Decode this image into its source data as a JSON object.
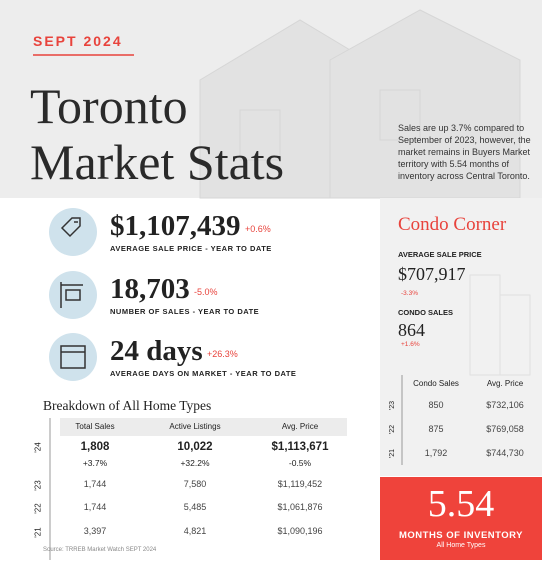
{
  "header": {
    "date": "SEPT 2024",
    "title_line1": "Toronto",
    "title_line2": "Market Stats",
    "summary": "Sales are up 3.7% compared to September of 2023, however, the market remains in Buyers Market territory with 5.54 months of inventory across Central Toronto."
  },
  "stats": [
    {
      "value": "$1,107,439",
      "change": "+0.6%",
      "label": "AVERAGE SALE PRICE - YEAR TO DATE"
    },
    {
      "value": "18,703",
      "change": "-5.0%",
      "label": "NUMBER OF SALES - YEAR TO DATE"
    },
    {
      "value": "24 days",
      "change": "+26.3%",
      "label": "AVERAGE DAYS ON MARKET - YEAR TO DATE"
    }
  ],
  "breakdown": {
    "title": "Breakdown of All Home Types",
    "columns": [
      "Total Sales",
      "Active Listings",
      "Avg. Price"
    ],
    "rows": [
      {
        "year": "'24",
        "cells": [
          "1,808",
          "10,022",
          "$1,113,671"
        ],
        "changes": [
          "+3.7%",
          "+32.2%",
          "-0.5%"
        ]
      },
      {
        "year": "'23",
        "cells": [
          "1,744",
          "7,580",
          "$1,119,452"
        ]
      },
      {
        "year": "'22",
        "cells": [
          "1,744",
          "5,485",
          "$1,061,876"
        ]
      },
      {
        "year": "'21",
        "cells": [
          "3,397",
          "4,821",
          "$1,090,196"
        ]
      }
    ]
  },
  "source": "Source: TRREB Market Watch SEPT 2024",
  "condo": {
    "title": "Condo Corner",
    "price_label": "AVERAGE SALE PRICE",
    "price": "$707,917",
    "price_change": "-3.3%",
    "sales_label": "CONDO SALES",
    "sales": "864",
    "sales_change": "+1.6%",
    "columns": [
      "Condo Sales",
      "Avg. Price"
    ],
    "rows": [
      {
        "year": "'23",
        "cells": [
          "850",
          "$732,106"
        ]
      },
      {
        "year": "'22",
        "cells": [
          "875",
          "$769,058"
        ]
      },
      {
        "year": "'21",
        "cells": [
          "1,792",
          "$744,730"
        ]
      }
    ]
  },
  "inventory": {
    "value": "5.54",
    "label": "MONTHS OF INVENTORY",
    "sublabel": "All Home Types"
  }
}
